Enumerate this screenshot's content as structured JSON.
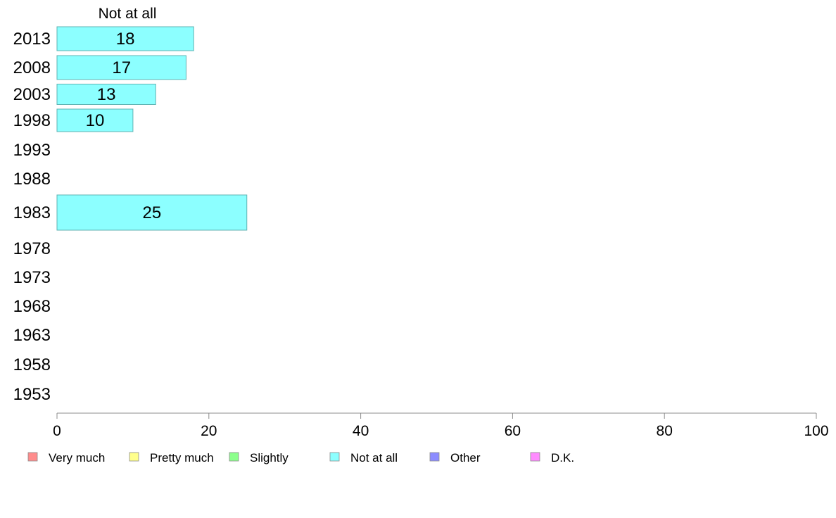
{
  "chart_data": {
    "type": "bar",
    "orientation": "horizontal",
    "panel_title": "Not at all",
    "categories": [
      "2013",
      "2008",
      "2003",
      "1998",
      "1993",
      "1988",
      "1983",
      "1978",
      "1973",
      "1968",
      "1963",
      "1958",
      "1953"
    ],
    "series": [
      {
        "name": "Not at all",
        "values": [
          18,
          17,
          13,
          10,
          null,
          null,
          25,
          null,
          null,
          null,
          null,
          null,
          null
        ]
      }
    ],
    "xlim": [
      0,
      100
    ],
    "xticks": [
      0,
      20,
      40,
      60,
      80,
      100
    ],
    "legend": {
      "placement": "bottom",
      "entries": [
        {
          "label": "Very much",
          "color": "#ff8c8c"
        },
        {
          "label": "Pretty much",
          "color": "#ffff8c"
        },
        {
          "label": "Slightly",
          "color": "#8cff8c"
        },
        {
          "label": "Not at all",
          "color": "#8cffff"
        },
        {
          "label": "Other",
          "color": "#8c8cff"
        },
        {
          "label": "D.K.",
          "color": "#ff8cff"
        }
      ]
    },
    "bar_color": "#8cffff",
    "bar_stroke": "#5fb3b3",
    "axis_color": "#8c8c8c"
  }
}
